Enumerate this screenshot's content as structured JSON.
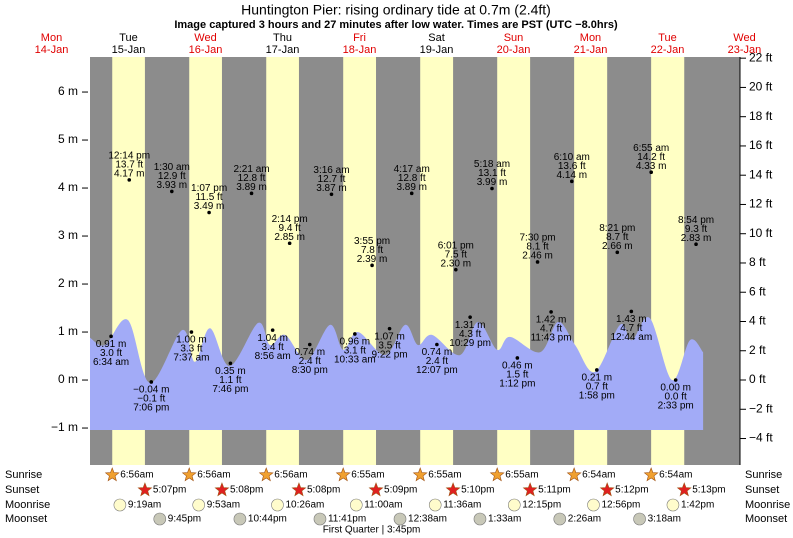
{
  "chart_data": {
    "type": "tide",
    "title": "Huntington Pier: rising  ordinary tide at 0.7m (2.4ft)",
    "subtitle": "Image captured 3 hours and 27 minutes after low water. Times are PST (UTC −8.0hrs)",
    "days": [
      {
        "weekday": "Mon",
        "date": "14-Jan",
        "color": "#e00000"
      },
      {
        "weekday": "Tue",
        "date": "15-Jan",
        "color": "#000000"
      },
      {
        "weekday": "Wed",
        "date": "16-Jan",
        "color": "#e00000"
      },
      {
        "weekday": "Thu",
        "date": "17-Jan",
        "color": "#000000"
      },
      {
        "weekday": "Fri",
        "date": "18-Jan",
        "color": "#e00000"
      },
      {
        "weekday": "Sat",
        "date": "19-Jan",
        "color": "#000000"
      },
      {
        "weekday": "Sun",
        "date": "20-Jan",
        "color": "#e00000"
      },
      {
        "weekday": "Mon",
        "date": "21-Jan",
        "color": "#e00000"
      },
      {
        "weekday": "Tue",
        "date": "22-Jan",
        "color": "#e00000"
      },
      {
        "weekday": "Wed",
        "date": "23-Jan",
        "color": "#e00000"
      }
    ],
    "xlim": [
      0,
      202.6
    ],
    "ylim": [
      -1.77,
      6.73
    ],
    "yticks": [
      {
        "value": -1,
        "label": "−1 m"
      },
      {
        "value": 0,
        "label": "0 m"
      },
      {
        "value": 1,
        "label": "1 m"
      },
      {
        "value": 2,
        "label": "2 m"
      },
      {
        "value": 3,
        "label": "3 m"
      },
      {
        "value": 4,
        "label": "4 m"
      },
      {
        "value": 5,
        "label": "5 m"
      },
      {
        "value": 6,
        "label": "6 m"
      }
    ],
    "y2lim": [
      -5.81,
      22.08
    ],
    "y2ticks": [
      {
        "value": -4,
        "label": "−4 ft"
      },
      {
        "value": -2,
        "label": "−2 ft"
      },
      {
        "value": 0,
        "label": "0 ft"
      },
      {
        "value": 2,
        "label": "2 ft"
      },
      {
        "value": 4,
        "label": "4 ft"
      },
      {
        "value": 6,
        "label": "6 ft"
      },
      {
        "value": 8,
        "label": "8 ft"
      },
      {
        "value": 10,
        "label": "10 ft"
      },
      {
        "value": 12,
        "label": "12 ft"
      },
      {
        "value": 14,
        "label": "14 ft"
      },
      {
        "value": 16,
        "label": "16 ft"
      },
      {
        "value": 18,
        "label": "18 ft"
      },
      {
        "value": 20,
        "label": "20 ft"
      },
      {
        "value": 22,
        "label": "22 ft"
      }
    ],
    "night_color": "#8c8c8c",
    "day_color": "#ffffc4",
    "tide_curve": {
      "color": "#a2abf7",
      "x": [
        0,
        4.7,
        11.8,
        18.7,
        28.7,
        32.7,
        37.4,
        43.6,
        52.4,
        56.1,
        60.8,
        67.6,
        74.8,
        78.9,
        83.5,
        92.0,
        98.2,
        102.2,
        106.6,
        115.3,
        120.9,
        126.9,
        130.9,
        140.3,
        145.9,
        151.2,
        157.4,
        165.2,
        168.9,
        174.5,
        181.4,
        187.0,
        191.1
      ],
      "values": [
        0.88,
        0.73,
        1.25,
        -0.06,
        1.04,
        0.38,
        1.08,
        0.29,
        1.19,
        0.73,
        0.94,
        0.42,
        1.15,
        0.63,
        1.0,
        0.52,
        1.15,
        0.73,
        0.94,
        0.52,
        1.21,
        0.63,
        0.9,
        0.58,
        1.21,
        0.73,
        0.17,
        1.15,
        0.83,
        1.29,
        0.0,
        0.83,
        0.58
      ]
    },
    "extremes": [
      {
        "time": "6:34 am",
        "x": 6.57,
        "value": 0.91,
        "m_label": "0.91 m",
        "ft_label": "3.0 ft"
      },
      {
        "time": "12:14 pm",
        "x": 12.23,
        "value": 4.17,
        "m_label": "4.17 m",
        "ft_label": "13.7 ft"
      },
      {
        "time": "7:06 pm",
        "x": 19.1,
        "value": -0.04,
        "m_label": "−0.04 m",
        "ft_label": "−0.1 ft"
      },
      {
        "time": "1:30 am",
        "x": 25.5,
        "value": 3.93,
        "m_label": "3.93 m",
        "ft_label": "12.9 ft"
      },
      {
        "time": "7:37 am",
        "x": 31.62,
        "value": 1.0,
        "m_label": "1.00 m",
        "ft_label": "3.3 ft"
      },
      {
        "time": "1:07 pm",
        "x": 37.12,
        "value": 3.49,
        "m_label": "3.49 m",
        "ft_label": "11.5 ft"
      },
      {
        "time": "7:46 pm",
        "x": 43.77,
        "value": 0.35,
        "m_label": "0.35 m",
        "ft_label": "1.1 ft"
      },
      {
        "time": "2:21 am",
        "x": 50.35,
        "value": 3.89,
        "m_label": "3.89 m",
        "ft_label": "12.8 ft"
      },
      {
        "time": "8:56 am",
        "x": 56.93,
        "value": 1.04,
        "m_label": "1.04 m",
        "ft_label": "3.4 ft"
      },
      {
        "time": "2:14 pm",
        "x": 62.23,
        "value": 2.85,
        "m_label": "2.85 m",
        "ft_label": "9.4 ft"
      },
      {
        "time": "8:30 pm",
        "x": 68.5,
        "value": 0.74,
        "m_label": "0.74 m",
        "ft_label": "2.4 ft"
      },
      {
        "time": "3:16 am",
        "x": 75.27,
        "value": 3.87,
        "m_label": "3.87 m",
        "ft_label": "12.7 ft"
      },
      {
        "time": "10:33 am",
        "x": 82.55,
        "value": 0.96,
        "m_label": "0.96 m",
        "ft_label": "3.1 ft"
      },
      {
        "time": "3:55 pm",
        "x": 87.92,
        "value": 2.39,
        "m_label": "2.39 m",
        "ft_label": "7.8 ft"
      },
      {
        "time": "9:22 pm",
        "x": 93.37,
        "value": 1.07,
        "m_label": "1.07 m",
        "ft_label": "3.5 ft"
      },
      {
        "time": "4:17 am",
        "x": 100.28,
        "value": 3.89,
        "m_label": "3.89 m",
        "ft_label": "12.8 ft"
      },
      {
        "time": "12:07 pm",
        "x": 108.12,
        "value": 0.74,
        "m_label": "0.74 m",
        "ft_label": "2.4 ft"
      },
      {
        "time": "6:01 pm",
        "x": 114.02,
        "value": 2.3,
        "m_label": "2.30 m",
        "ft_label": "7.5 ft"
      },
      {
        "time": "10:29 pm",
        "x": 118.48,
        "value": 1.31,
        "m_label": "1.31 m",
        "ft_label": "4.3 ft"
      },
      {
        "time": "5:18 am",
        "x": 125.3,
        "value": 3.99,
        "m_label": "3.99 m",
        "ft_label": "13.1 ft"
      },
      {
        "time": "1:12 pm",
        "x": 133.2,
        "value": 0.46,
        "m_label": "0.46 m",
        "ft_label": "1.5 ft"
      },
      {
        "time": "7:30 pm",
        "x": 139.5,
        "value": 2.46,
        "m_label": "2.46 m",
        "ft_label": "8.1 ft"
      },
      {
        "time": "11:43 pm",
        "x": 143.72,
        "value": 1.42,
        "m_label": "1.42 m",
        "ft_label": "4.7 ft"
      },
      {
        "time": "6:10 am",
        "x": 150.17,
        "value": 4.14,
        "m_label": "4.14 m",
        "ft_label": "13.6 ft"
      },
      {
        "time": "1:58 pm",
        "x": 157.97,
        "value": 0.21,
        "m_label": "0.21 m",
        "ft_label": "0.7 ft"
      },
      {
        "time": "8:21 pm",
        "x": 164.35,
        "value": 2.66,
        "m_label": "2.66 m",
        "ft_label": "8.7 ft"
      },
      {
        "time": "12:44 am",
        "x": 168.73,
        "value": 1.43,
        "m_label": "1.43 m",
        "ft_label": "4.7 ft"
      },
      {
        "time": "6:55 am",
        "x": 174.92,
        "value": 4.33,
        "m_label": "4.33 m",
        "ft_label": "14.2 ft"
      },
      {
        "time": "2:33 pm",
        "x": 182.55,
        "value": 0.0,
        "m_label": "0.00 m",
        "ft_label": "0.0 ft"
      },
      {
        "time": "8:54 pm",
        "x": 188.9,
        "value": 2.83,
        "m_label": "2.83 m",
        "ft_label": "9.3 ft"
      }
    ],
    "rows": [
      {
        "label": "Sunrise",
        "icon": "sunrise",
        "events": [
          {
            "time": "6:56am",
            "x": 6.93
          },
          {
            "time": "6:56am",
            "x": 30.93
          },
          {
            "time": "6:56am",
            "x": 54.93
          },
          {
            "time": "6:55am",
            "x": 78.92
          },
          {
            "time": "6:55am",
            "x": 102.92
          },
          {
            "time": "6:55am",
            "x": 126.92
          },
          {
            "time": "6:54am",
            "x": 150.9
          },
          {
            "time": "6:54am",
            "x": 174.9
          }
        ]
      },
      {
        "label": "Sunset",
        "icon": "sunset",
        "events": [
          {
            "time": "5:07pm",
            "x": 17.12
          },
          {
            "time": "5:08pm",
            "x": 41.13
          },
          {
            "time": "5:08pm",
            "x": 65.13
          },
          {
            "time": "5:09pm",
            "x": 89.15
          },
          {
            "time": "5:10pm",
            "x": 113.17
          },
          {
            "time": "5:11pm",
            "x": 137.18
          },
          {
            "time": "5:12pm",
            "x": 161.2
          },
          {
            "time": "5:13pm",
            "x": 185.22
          }
        ]
      },
      {
        "label": "Moonrise",
        "icon": "moonrise",
        "events": [
          {
            "time": "9:19am",
            "x": 9.32
          },
          {
            "time": "9:53am",
            "x": 33.88
          },
          {
            "time": "10:26am",
            "x": 58.43
          },
          {
            "time": "11:00am",
            "x": 83.0
          },
          {
            "time": "11:36am",
            "x": 107.6
          },
          {
            "time": "12:15pm",
            "x": 132.25
          },
          {
            "time": "12:56pm",
            "x": 156.93
          },
          {
            "time": "1:42pm",
            "x": 181.7
          }
        ]
      },
      {
        "label": "Moonset",
        "icon": "moonset",
        "events": [
          {
            "time": "9:45pm",
            "x": 21.75
          },
          {
            "time": "10:44pm",
            "x": 46.73
          },
          {
            "time": "11:41pm",
            "x": 71.68
          },
          {
            "time": "12:38am",
            "x": 96.63
          },
          {
            "time": "1:33am",
            "x": 121.55
          },
          {
            "time": "2:26am",
            "x": 146.43
          },
          {
            "time": "3:18am",
            "x": 171.3
          }
        ]
      }
    ],
    "moon_phase": {
      "label": "First Quarter | 3:45pm",
      "x": 87.75
    }
  }
}
